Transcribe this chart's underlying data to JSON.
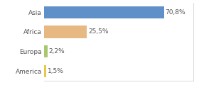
{
  "categories": [
    "America",
    "Europa",
    "Africa",
    "Asia"
  ],
  "values": [
    1.5,
    2.2,
    25.5,
    70.8
  ],
  "labels": [
    "1,5%",
    "2,2%",
    "25,5%",
    "70,8%"
  ],
  "bar_colors": [
    "#e8c84a",
    "#a8c870",
    "#e8b882",
    "#6090c8"
  ],
  "background_color": "#ffffff",
  "xlim": [
    0,
    88
  ],
  "label_fontsize": 6.5,
  "tick_fontsize": 6.5,
  "bar_height": 0.62,
  "text_color": "#555555",
  "spine_color": "#cccccc"
}
